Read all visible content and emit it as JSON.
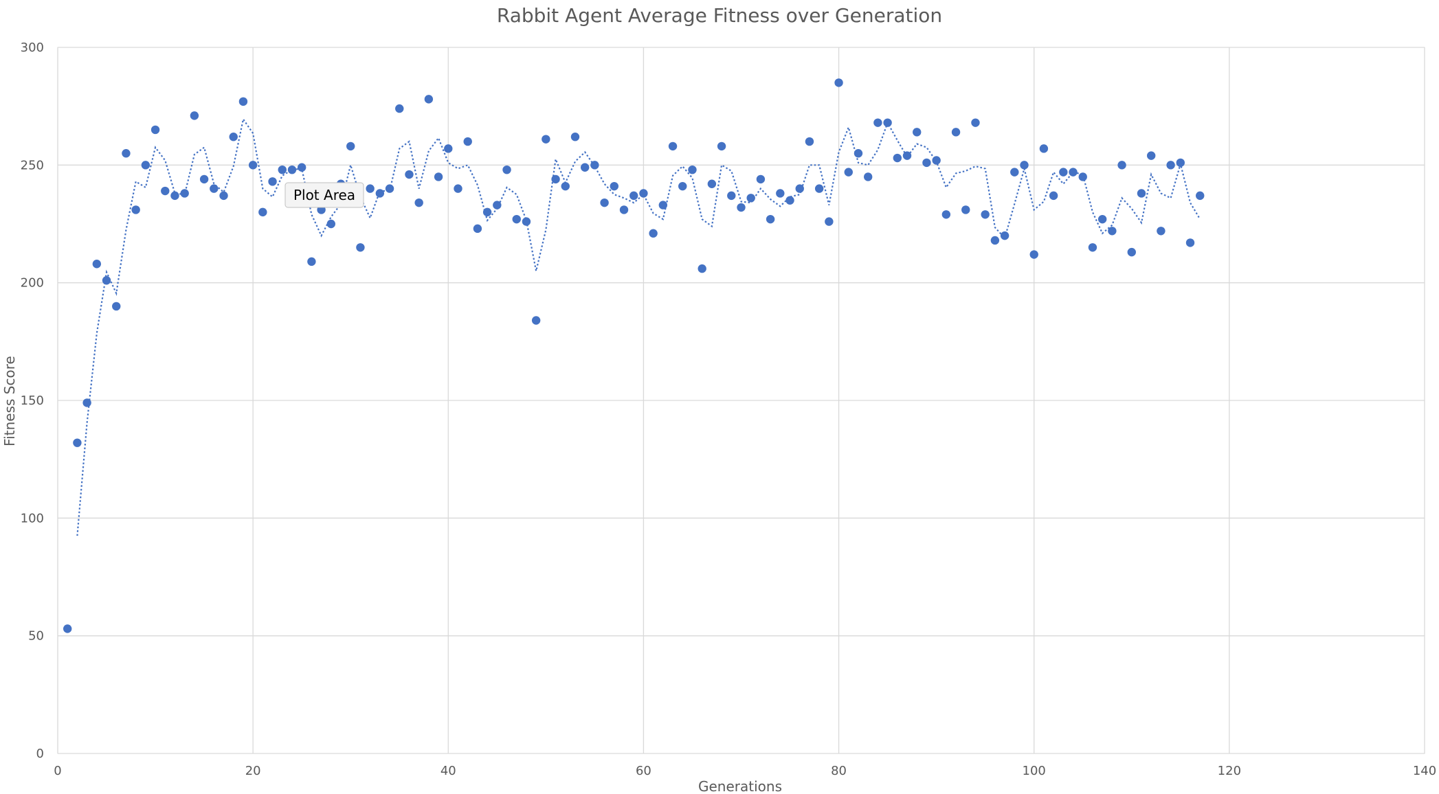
{
  "chart_data": {
    "type": "scatter",
    "title": "Rabbit Agent Average Fitness over Generation",
    "xlabel": "Generations",
    "ylabel": "Fitness Score",
    "xlim": [
      0,
      140
    ],
    "ylim": [
      0,
      300
    ],
    "x_ticks": [
      0,
      20,
      40,
      60,
      80,
      100,
      120,
      140
    ],
    "y_ticks": [
      0,
      50,
      100,
      150,
      200,
      250,
      300
    ],
    "grid": true,
    "legend": "none",
    "colors": {
      "marker": "#4472C4",
      "grid": "#D9D9D9",
      "text": "#595959"
    },
    "trendline": {
      "type": "moving-average",
      "period": 2,
      "style": "dotted"
    },
    "series": [
      {
        "x": [
          1,
          2,
          3,
          4,
          5,
          6,
          7,
          8,
          9,
          10,
          11,
          12,
          13,
          14,
          15,
          16,
          17,
          18,
          19,
          20,
          21,
          22,
          23,
          24,
          25,
          26,
          27,
          28,
          29,
          30,
          31,
          32,
          33,
          34,
          35,
          36,
          37,
          38,
          39,
          40,
          41,
          42,
          43,
          44,
          45,
          46,
          47,
          48,
          49,
          50,
          51,
          52,
          53,
          54,
          55,
          56,
          57,
          58,
          59,
          60,
          61,
          62,
          63,
          64,
          65,
          66,
          67,
          68,
          69,
          70,
          71,
          72,
          73,
          74,
          75,
          76,
          77,
          78,
          79,
          80,
          81,
          82,
          83,
          84,
          85,
          86,
          87,
          88,
          89,
          90,
          91,
          92,
          93,
          94,
          95,
          96,
          97,
          98,
          99,
          100,
          101,
          102,
          103,
          104,
          105,
          106,
          107,
          108,
          109,
          110,
          111,
          112,
          113,
          114,
          115,
          116,
          117
        ],
        "y": [
          53,
          132,
          149,
          208,
          201,
          190,
          255,
          231,
          250,
          265,
          239,
          237,
          238,
          271,
          244,
          240,
          237,
          262,
          277,
          250,
          230,
          243,
          248,
          248,
          249,
          209,
          231,
          225,
          242,
          258,
          215,
          240,
          238,
          240,
          274,
          246,
          234,
          278,
          245,
          257,
          240,
          260,
          223,
          230,
          233,
          248,
          227,
          226,
          184,
          261,
          244,
          241,
          262,
          249,
          250,
          234,
          241,
          231,
          237,
          238,
          221,
          233,
          258,
          241,
          248,
          206,
          242,
          258,
          237,
          232,
          236,
          244,
          227,
          238,
          235,
          240,
          260,
          240,
          226,
          285,
          247,
          255,
          245,
          268,
          268,
          253,
          254,
          264,
          251,
          252,
          229,
          264,
          231,
          268,
          229,
          218,
          220,
          247,
          250,
          212,
          257,
          237,
          247,
          247,
          245,
          215,
          227,
          222,
          250,
          213,
          238,
          254,
          222,
          250,
          251,
          217,
          237
        ]
      }
    ]
  },
  "tooltip": {
    "label": "Plot Area"
  }
}
